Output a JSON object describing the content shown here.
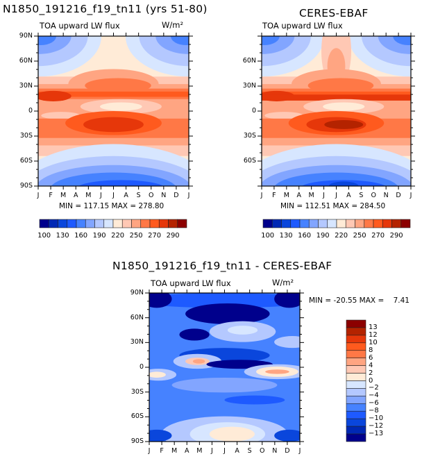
{
  "chart_data": [
    {
      "type": "heatmap",
      "title": "N1850_191216_f19_tn11 (yrs 51-80)",
      "subtitle_left": "TOA upward LW flux",
      "subtitle_right": "W/m²",
      "x_tick_labels": [
        "J",
        "F",
        "M",
        "A",
        "M",
        "J",
        "J",
        "A",
        "S",
        "O",
        "N",
        "D",
        "J"
      ],
      "y_tick_labels": [
        "90N",
        "60N",
        "30N",
        "0",
        "30S",
        "60S",
        "90S"
      ],
      "xlabel": "",
      "ylabel": "",
      "stats": "MIN = 117.15  MAX = 278.80",
      "min": 117.15,
      "max": 278.8,
      "colorbar": {
        "orientation": "horizontal",
        "levels": [
          100,
          115,
          130,
          145,
          160,
          175,
          190,
          205,
          220,
          235,
          250,
          260,
          270,
          280,
          290
        ],
        "labels": [
          "100",
          "130",
          "160",
          "190",
          "220",
          "250",
          "270",
          "290"
        ],
        "colors": [
          "#00008c",
          "#0028b4",
          "#0a46dc",
          "#1e5aff",
          "#4682ff",
          "#82a5ff",
          "#b4c8ff",
          "#d7e6ff",
          "#ffebd7",
          "#ffc8b4",
          "#ffa582",
          "#ff7846",
          "#ff5a1e",
          "#e6370a",
          "#b42300",
          "#8c0000"
        ]
      }
    },
    {
      "type": "heatmap",
      "title": "CERES-EBAF",
      "subtitle_left": "TOA upward LW flux",
      "x_tick_labels": [
        "J",
        "F",
        "M",
        "A",
        "M",
        "J",
        "J",
        "A",
        "S",
        "O",
        "N",
        "D",
        "J"
      ],
      "y_tick_labels": [
        "60N",
        "30N",
        "0",
        "30S",
        "60S"
      ],
      "stats": "MIN = 112.51  MAX = 284.50",
      "min": 112.51,
      "max": 284.5,
      "colorbar": {
        "orientation": "horizontal",
        "labels": [
          "100",
          "130",
          "160",
          "190",
          "220",
          "250",
          "270",
          "290"
        ]
      }
    },
    {
      "type": "heatmap",
      "title": "N1850_191216_f19_tn11 - CERES-EBAF",
      "subtitle_left": "TOA upward LW flux",
      "subtitle_right": "W/m²",
      "x_tick_labels": [
        "J",
        "F",
        "M",
        "A",
        "M",
        "J",
        "J",
        "A",
        "S",
        "O",
        "N",
        "D",
        "J"
      ],
      "y_tick_labels": [
        "90N",
        "60N",
        "30N",
        "0",
        "30S",
        "60S",
        "90S"
      ],
      "stats": "MIN = -20.55 MAX =    7.41",
      "min": -20.55,
      "max": 7.41,
      "colorbar": {
        "orientation": "vertical",
        "labels": [
          "13",
          "12",
          "10",
          "8",
          "6",
          "4",
          "2",
          "0",
          "-2",
          "-4",
          "-6",
          "-8",
          "-10",
          "-12",
          "-13"
        ]
      }
    }
  ]
}
